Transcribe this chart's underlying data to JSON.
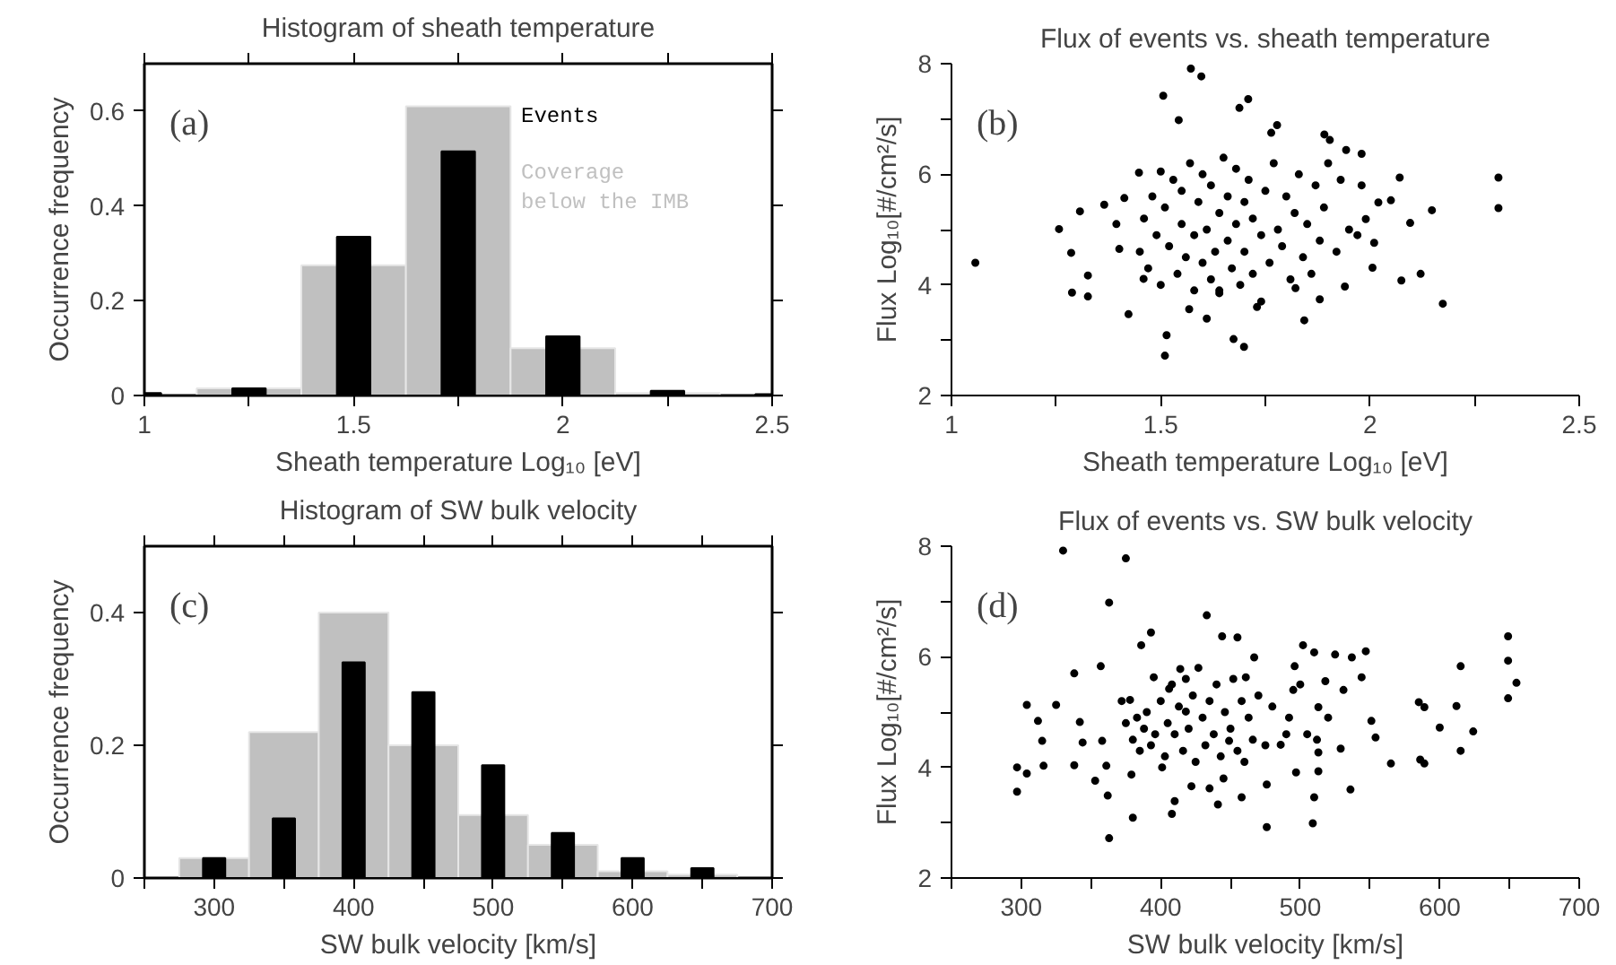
{
  "chart_data": [
    {
      "type": "histogram",
      "title": "Histogram of sheath temperature",
      "xlabel": "Sheath temperature Log₁₀ [eV]",
      "ylabel": "Occurrence frequency",
      "annotations": [
        "(a)"
      ],
      "legend": "top right",
      "xlim": [
        1,
        2.5
      ],
      "xticks": [
        1,
        {
          "value": 1.25,
          "label": null
        },
        1.5,
        {
          "value": 1.75,
          "label": null
        },
        2,
        {
          "value": 2.25,
          "label": null
        },
        2.5
      ],
      "ylim": [
        0,
        0.7
      ],
      "yticks": [
        0,
        0.2,
        0.4,
        0.6
      ],
      "series": [
        {
          "name": "Events",
          "type": "bar",
          "color": "#000000",
          "x": [
            1,
            1.25,
            1.5,
            1.75,
            2,
            2.25,
            2.5
          ],
          "values": [
            0.005,
            0.015,
            0.335,
            0.515,
            0.125,
            0.01,
            0.003
          ]
        },
        {
          "name": "Coverage below the IMB",
          "type": "histogram",
          "color": "#c0c0c0",
          "bins": [
            1.125,
            1.375,
            1.625,
            1.875,
            2.125,
            2.375
          ],
          "values": [
            0.015,
            0.275,
            0.61,
            0.1,
            0.005
          ]
        }
      ]
    },
    {
      "type": "scatter",
      "title": "Flux of events vs. sheath temperature",
      "xlabel": "Sheath temperature Log₁₀ [eV]",
      "ylabel": "Flux Log₁₀[#/cm²/s]",
      "annotations": [
        "(b)"
      ],
      "marker": "circle",
      "xlim": [
        1,
        2.5
      ],
      "xticks": [
        1,
        {
          "value": 1.25,
          "label": null
        },
        1.5,
        {
          "value": 1.75,
          "label": null
        },
        2,
        {
          "value": 2.25,
          "label": null
        },
        2.5
      ],
      "ylim": [
        2,
        8
      ],
      "yticks": [
        2,
        {
          "value": 3,
          "label": null
        },
        4,
        {
          "value": 5,
          "label": null
        },
        6,
        {
          "value": 7,
          "label": null
        },
        8
      ],
      "series": [
        {
          "color": "#000000",
          "x": [
            1.057,
            1.257,
            1.286,
            1.288,
            1.307,
            1.326,
            1.326,
            1.365,
            1.394,
            1.401,
            1.413,
            1.423,
            1.448,
            1.459,
            1.506,
            1.51,
            1.514,
            1.543,
            1.572,
            1.597,
            1.688,
            1.709,
            1.778,
            1.764,
            1.843,
            1.891,
            1.904,
            1.943,
            1.98,
            2.006,
            2.075,
            2.071,
            2.096,
            2.121,
            2.148,
            2.174,
            2.307,
            2.307,
            1.674,
            1.699,
            1.568,
            1.61,
            1.64,
            1.74,
            1.822,
            1.88,
            1.94,
            1.99,
            2.01,
            2.05,
            2.02,
            1.45,
            1.46,
            1.47,
            1.48,
            1.49,
            1.5,
            1.5,
            1.51,
            1.52,
            1.53,
            1.54,
            1.55,
            1.55,
            1.56,
            1.57,
            1.58,
            1.58,
            1.59,
            1.6,
            1.6,
            1.61,
            1.62,
            1.62,
            1.63,
            1.64,
            1.64,
            1.65,
            1.66,
            1.66,
            1.67,
            1.68,
            1.68,
            1.69,
            1.7,
            1.7,
            1.71,
            1.72,
            1.72,
            1.73,
            1.74,
            1.75,
            1.76,
            1.77,
            1.78,
            1.79,
            1.8,
            1.81,
            1.82,
            1.83,
            1.84,
            1.85,
            1.86,
            1.87,
            1.88,
            1.89,
            1.9,
            1.92,
            1.93,
            1.95,
            1.97,
            1.98
          ],
          "values": [
            4.4,
            5.01,
            4.58,
            3.86,
            5.33,
            4.17,
            3.79,
            5.45,
            5.1,
            4.65,
            5.57,
            3.47,
            6.03,
            4.11,
            7.42,
            2.72,
            3.09,
            6.98,
            7.91,
            7.77,
            7.2,
            7.36,
            6.89,
            6.75,
            3.36,
            6.72,
            6.62,
            6.44,
            6.37,
            4.31,
            4.08,
            5.94,
            5.12,
            4.2,
            5.35,
            3.66,
            5.94,
            5.39,
            3.02,
            2.88,
            3.56,
            3.39,
            3.9,
            3.7,
            3.94,
            3.74,
            3.97,
            5.19,
            4.76,
            5.53,
            5.49,
            4.6,
            5.2,
            4.3,
            5.6,
            4.9,
            6.05,
            4.0,
            5.4,
            4.7,
            5.9,
            4.2,
            5.1,
            5.7,
            4.5,
            6.2,
            4.9,
            3.9,
            5.5,
            4.4,
            6.0,
            5.0,
            4.1,
            5.8,
            4.6,
            5.3,
            3.85,
            6.3,
            4.8,
            5.6,
            4.3,
            5.1,
            6.1,
            4.0,
            5.5,
            4.6,
            5.9,
            4.2,
            5.2,
            3.6,
            4.9,
            5.7,
            4.4,
            6.2,
            5.0,
            4.7,
            5.6,
            4.1,
            5.3,
            6.0,
            4.5,
            5.1,
            4.2,
            5.8,
            4.8,
            5.4,
            6.2,
            4.6,
            5.9,
            5.0,
            4.9,
            5.8
          ]
        }
      ]
    },
    {
      "type": "histogram",
      "title": "Histogram of SW bulk velocity",
      "xlabel": "SW bulk velocity [km/s]",
      "ylabel": "Occurrence frequency",
      "annotations": [
        "(c)"
      ],
      "xlim": [
        250,
        700
      ],
      "xticks": [
        {
          "value": 250,
          "label": null
        },
        300,
        {
          "value": 350,
          "label": null
        },
        400,
        {
          "value": 450,
          "label": null
        },
        500,
        {
          "value": 550,
          "label": null
        },
        600,
        {
          "value": 650,
          "label": null
        },
        700
      ],
      "ylim": [
        0,
        0.5
      ],
      "yticks": [
        0,
        0.2,
        0.4
      ],
      "series": [
        {
          "type": "bar",
          "color": "#000000",
          "x": [
            300,
            350,
            400,
            450,
            500,
            550,
            600,
            650
          ],
          "values": [
            0.03,
            0.09,
            0.325,
            0.28,
            0.17,
            0.068,
            0.03,
            0.015
          ]
        },
        {
          "type": "histogram",
          "color": "#c0c0c0",
          "bins": [
            275,
            325,
            375,
            425,
            475,
            525,
            575,
            625,
            675
          ],
          "values": [
            0.03,
            0.22,
            0.4,
            0.2,
            0.095,
            0.05,
            0.01,
            0.005
          ]
        }
      ]
    },
    {
      "type": "scatter",
      "title": "Flux of events vs. SW bulk velocity",
      "xlabel": "SW bulk velocity [km/s]",
      "ylabel": "Flux Log₁₀[#/cm²/s]",
      "annotations": [
        "(d)"
      ],
      "marker": "circle",
      "xlim": [
        250,
        700
      ],
      "xticks": [
        {
          "value": 250,
          "label": null
        },
        300,
        {
          "value": 350,
          "label": null
        },
        400,
        {
          "value": 450,
          "label": null
        },
        500,
        {
          "value": 550,
          "label": null
        },
        600,
        {
          "value": 650,
          "label": null
        },
        700
      ],
      "ylim": [
        2,
        8
      ],
      "yticks": [
        2,
        {
          "value": 3,
          "label": null
        },
        4,
        {
          "value": 5,
          "label": null
        },
        6,
        {
          "value": 7,
          "label": null
        },
        8
      ],
      "series": [
        {
          "color": "#000000",
          "x": [
            297,
            297,
            304,
            304,
            312,
            315,
            316,
            325,
            330,
            338,
            338,
            342,
            344,
            353,
            357,
            358,
            361,
            362,
            363,
            363,
            375,
            379,
            380,
            378,
            386,
            393,
            395,
            401,
            406,
            408,
            410,
            414,
            418,
            422,
            433,
            435,
            441,
            444,
            445,
            449,
            455,
            458,
            461,
            467,
            476,
            476,
            486,
            496,
            497,
            502,
            509,
            510,
            510,
            513,
            513,
            513,
            518,
            525,
            529,
            531,
            536,
            537,
            544,
            547,
            551,
            554,
            565,
            585,
            586,
            589,
            589,
            600,
            612,
            615,
            615,
            624,
            649,
            649,
            649,
            655,
            372,
            375,
            380,
            383,
            385,
            388,
            390,
            393,
            396,
            400,
            403,
            405,
            408,
            410,
            413,
            416,
            418,
            420,
            423,
            425,
            427,
            430,
            432,
            435,
            438,
            440,
            443,
            446,
            450,
            452,
            455,
            458,
            460,
            463,
            466,
            470,
            475,
            480,
            490,
            492,
            495,
            500,
            505,
            512,
            520
          ],
          "values": [
            4.0,
            3.56,
            5.13,
            3.89,
            4.84,
            4.48,
            4.03,
            5.13,
            7.92,
            5.7,
            4.04,
            4.82,
            4.45,
            3.76,
            5.83,
            4.48,
            4.03,
            3.49,
            2.72,
            6.98,
            7.78,
            3.87,
            3.09,
            5.22,
            6.21,
            6.44,
            5.63,
            4.0,
            5.42,
            3.16,
            3.39,
            5.78,
            5.01,
            3.66,
            6.75,
            3.62,
            3.33,
            6.37,
            3.8,
            4.48,
            6.35,
            3.46,
            5.63,
            5.99,
            3.69,
            2.92,
            4.41,
            5.83,
            3.91,
            6.21,
            2.99,
            3.46,
            6.08,
            4.27,
            3.93,
            5.09,
            5.56,
            6.04,
            4.34,
            5.4,
            3.6,
            5.99,
            5.63,
            6.1,
            4.84,
            4.54,
            4.07,
            5.18,
            4.14,
            4.07,
            5.09,
            4.72,
            5.11,
            5.83,
            4.3,
            4.65,
            6.37,
            5.93,
            5.25,
            5.53,
            5.2,
            4.8,
            4.5,
            4.9,
            4.3,
            4.7,
            5.0,
            4.4,
            4.6,
            5.2,
            4.2,
            4.8,
            5.5,
            4.6,
            5.1,
            4.3,
            5.6,
            4.7,
            5.3,
            4.1,
            5.8,
            4.9,
            4.4,
            5.2,
            4.6,
            5.5,
            4.2,
            5.0,
            4.7,
            5.6,
            4.3,
            5.2,
            4.1,
            4.9,
            4.5,
            5.3,
            4.4,
            5.1,
            4.6,
            4.9,
            5.4,
            5.5,
            4.6,
            4.5,
            4.9
          ]
        }
      ]
    }
  ]
}
